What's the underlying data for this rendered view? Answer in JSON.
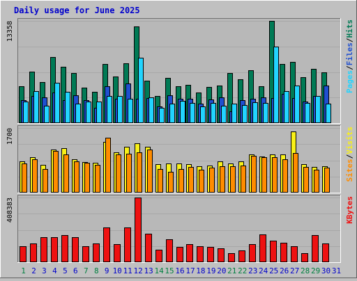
{
  "chart_data": {
    "type": "bar",
    "title": "Daily usage for June 2025",
    "categories": [
      "1",
      "2",
      "3",
      "4",
      "5",
      "6",
      "7",
      "8",
      "9",
      "10",
      "11",
      "12",
      "13",
      "14",
      "15",
      "16",
      "17",
      "18",
      "19",
      "20",
      "21",
      "22",
      "23",
      "24",
      "25",
      "26",
      "27",
      "28",
      "29",
      "30",
      "31"
    ],
    "weekend_days": [
      "1",
      "7",
      "8",
      "14",
      "15",
      "21",
      "22",
      "28",
      "29"
    ],
    "colors": {
      "background": "#c0c0c0",
      "plot_background": "#b8b8b8",
      "title": "#0000cc",
      "hits": "#007a55",
      "files": "#1f4fd0",
      "pages": "#22d4ff",
      "visits": "#f8f018",
      "sites": "#ff8c00",
      "kbytes": "#ee1111",
      "weekday_label": "#0000cc",
      "weekend_label": "#008040"
    },
    "panels": [
      {
        "id": "requests",
        "max_label": "13358",
        "ylim": [
          0,
          13358
        ],
        "legend": [
          "Pages",
          "Files",
          "Hits"
        ],
        "series": [
          {
            "name": "Hits",
            "values": [
              4800,
              6700,
              5400,
              8600,
              7400,
              6500,
              4600,
              4100,
              7700,
              6100,
              7800,
              12600,
              5500,
              3500,
              5900,
              4800,
              5000,
              4000,
              4700,
              4900,
              6500,
              5700,
              6900,
              4800,
              13358,
              7700,
              8000,
              6000,
              7100,
              6600,
              null
            ]
          },
          {
            "name": "Files",
            "values": [
              3000,
              3500,
              3400,
              4000,
              3000,
              3600,
              3000,
              2000,
              4800,
              3200,
              5200,
              3200,
              3300,
              2200,
              3600,
              3200,
              3200,
              2500,
              3100,
              3400,
              1500,
              3000,
              3200,
              3400,
              3300,
              3800,
              3300,
              2800,
              3500,
              4900,
              null
            ]
          },
          {
            "name": "Pages",
            "values": [
              2800,
              4200,
              2300,
              5300,
              4100,
              2500,
              2800,
              2800,
              3500,
              3500,
              3200,
              8500,
              3400,
              2000,
              2500,
              2900,
              2600,
              2200,
              2600,
              2300,
              2500,
              2400,
              2700,
              2600,
              10000,
              4200,
              4900,
              2600,
              3500,
              2500,
              null
            ]
          }
        ]
      },
      {
        "id": "visitors",
        "max_label": "1700",
        "ylim": [
          0,
          1700
        ],
        "legend": [
          "Sites",
          "Visits"
        ],
        "series": [
          {
            "name": "Visits",
            "values": [
              830,
              940,
              730,
              1140,
              1170,
              880,
              800,
              780,
              1340,
              1060,
              1210,
              1300,
              1200,
              750,
              760,
              770,
              750,
              690,
              710,
              830,
              770,
              820,
              1000,
              950,
              1000,
              1000,
              1600,
              750,
              680,
              700,
              null
            ]
          },
          {
            "name": "Sites",
            "values": [
              770,
              870,
              630,
              1090,
              1000,
              830,
              790,
              730,
              1440,
              1000,
              1030,
              1060,
              1140,
              630,
              550,
              630,
              680,
              610,
              650,
              700,
              700,
              720,
              960,
              930,
              930,
              880,
              1040,
              680,
              610,
              660,
              null
            ]
          }
        ]
      },
      {
        "id": "volume",
        "max_label": "408383",
        "ylim": [
          0,
          408383
        ],
        "legend": [
          "KBytes"
        ],
        "series": [
          {
            "name": "KBytes",
            "values": [
              100000,
              120000,
              160000,
              160000,
              170000,
              160000,
              100000,
              120000,
              220000,
              115000,
              220000,
              410000,
              180000,
              80000,
              145000,
              95000,
              115000,
              100000,
              95000,
              90000,
              55000,
              75000,
              115000,
              175000,
              135000,
              125000,
              100000,
              55000,
              170000,
              120000,
              null
            ]
          }
        ]
      }
    ]
  }
}
